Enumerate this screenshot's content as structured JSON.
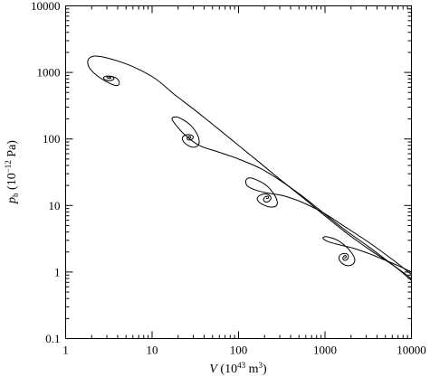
{
  "chart_data": {
    "type": "line",
    "title": "",
    "x_scale": "log",
    "y_scale": "log",
    "xlim": [
      1,
      10000
    ],
    "ylim": [
      0.1,
      10000
    ],
    "grid": false,
    "legend": "none",
    "xlabel": {
      "symbol": "V",
      "open": " (10",
      "exp": "43",
      "unit": " m",
      "unit_exp": "3",
      "close": ")"
    },
    "ylabel": {
      "symbol": "p",
      "sub": "b",
      "open": " (10",
      "exp": "−12",
      "unit": " Pa)"
    },
    "x_ticks": [
      {
        "value": 1,
        "label": "1"
      },
      {
        "value": 10,
        "label": "10"
      },
      {
        "value": 100,
        "label": "100"
      },
      {
        "value": 1000,
        "label": "1000"
      },
      {
        "value": 10000,
        "label": "10000"
      }
    ],
    "y_ticks": [
      {
        "value": 0.1,
        "label": "0.1"
      },
      {
        "value": 1,
        "label": "1"
      },
      {
        "value": 10,
        "label": "10"
      },
      {
        "value": 100,
        "label": "100"
      },
      {
        "value": 1000,
        "label": "1000"
      },
      {
        "value": 10000,
        "label": "10000"
      }
    ],
    "series": [
      {
        "x": [
          10000,
          6200,
          3400,
          1800,
          1000,
          560,
          310,
          180,
          100,
          57,
          32,
          18,
          11,
          6.2,
          3.6,
          2.4,
          1.95,
          1.8,
          1.9,
          2.3,
          3.0,
          3.7,
          4.1,
          4.15,
          3.8,
          3.2,
          2.8,
          2.8,
          3.2,
          3.6,
          3.5,
          3.1,
          3.0,
          3.25,
          3.35,
          3.2,
          3.15,
          3.2
        ],
        "y": [
          0.75,
          1.25,
          2.1,
          3.8,
          7,
          13,
          24,
          43,
          80,
          145,
          265,
          470,
          800,
          1200,
          1550,
          1750,
          1700,
          1450,
          1150,
          900,
          720,
          640,
          650,
          730,
          830,
          880,
          860,
          790,
          750,
          790,
          860,
          880,
          840,
          810,
          840,
          860,
          850,
          845
        ]
      },
      {
        "x": [
          10000,
          6000,
          3200,
          1700,
          950,
          540,
          300,
          180,
          100,
          60,
          35,
          24,
          19,
          17,
          18.5,
          22,
          28,
          33,
          35,
          34,
          30,
          26,
          23,
          22.5,
          24.5,
          28,
          30,
          28.5,
          26,
          25.5,
          27,
          28,
          27.3,
          27
        ],
        "y": [
          0.8,
          1.3,
          2.4,
          4.3,
          7.8,
          14,
          24,
          36,
          50,
          63,
          80,
          115,
          160,
          200,
          215,
          200,
          160,
          120,
          95,
          80,
          75,
          80,
          92,
          105,
          115,
          115,
          107,
          98,
          97,
          104,
          110,
          106,
          102,
          104
        ]
      },
      {
        "x": [
          10000,
          6000,
          3200,
          1700,
          950,
          560,
          330,
          210,
          150,
          125,
          122,
          135,
          165,
          210,
          255,
          280,
          270,
          230,
          195,
          170,
          165,
          182,
          212,
          235,
          232,
          210,
          195,
          200,
          218,
          222,
          212,
          210
        ],
        "y": [
          0.92,
          1.55,
          2.8,
          4.8,
          7.8,
          11,
          14,
          15.5,
          17.5,
          20,
          24,
          26,
          24,
          20,
          15,
          11.5,
          9.8,
          9.5,
          10.2,
          11.5,
          13,
          14.5,
          14.8,
          13.5,
          12,
          11.2,
          12,
          13.3,
          13.8,
          13,
          12.7,
          13
        ]
      },
      {
        "x": [
          10000,
          7000,
          4700,
          3200,
          2200,
          1500,
          1100,
          950,
          1000,
          1150,
          1400,
          1700,
          2000,
          2200,
          2150,
          1900,
          1650,
          1500,
          1450,
          1540,
          1720,
          1850,
          1840,
          1720,
          1620,
          1630,
          1720,
          1760,
          1700,
          1680
        ],
        "y": [
          1.0,
          1.25,
          1.55,
          1.9,
          2.25,
          2.55,
          2.85,
          3.2,
          3.4,
          3.3,
          3.0,
          2.5,
          2.0,
          1.6,
          1.35,
          1.25,
          1.3,
          1.45,
          1.65,
          1.85,
          1.9,
          1.8,
          1.6,
          1.5,
          1.55,
          1.7,
          1.78,
          1.7,
          1.62,
          1.66
        ]
      }
    ]
  }
}
